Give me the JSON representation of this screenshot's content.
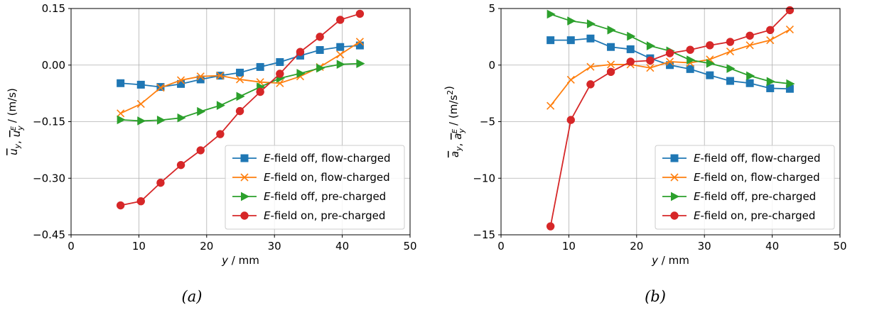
{
  "chart_data": [
    {
      "type": "line",
      "caption": "(a)",
      "xlabel": {
        "var": "y",
        "unit": " / mm"
      },
      "ylabel": {
        "parts": [
          [
            "u",
            "over",
            "y"
          ],
          [
            ", ",
            "",
            ""
          ],
          [
            "u",
            "over",
            "y",
            "E"
          ],
          [
            " / (m/s)",
            "",
            ""
          ]
        ]
      },
      "xlim": [
        0,
        50
      ],
      "ylim": [
        -0.45,
        0.15
      ],
      "xticks": [
        "0",
        "10",
        "20",
        "30",
        "40",
        "50"
      ],
      "yticks": [
        "−0.45",
        "−0.30",
        "−0.15",
        "0.00",
        "0.15"
      ],
      "grid": true,
      "legend_position": "lower-right",
      "series": [
        {
          "name": "field off, flow-charged",
          "prefix": "E",
          "color": "#1f77b4",
          "marker": "square",
          "x": [
            7.3,
            10.3,
            13.2,
            16.2,
            19.1,
            22.0,
            24.9,
            27.9,
            30.8,
            33.8,
            36.7,
            39.7,
            42.6
          ],
          "y": [
            -0.048,
            -0.052,
            -0.058,
            -0.05,
            -0.038,
            -0.028,
            -0.02,
            -0.005,
            0.008,
            0.025,
            0.04,
            0.048,
            0.052
          ]
        },
        {
          "name": "field on, flow-charged",
          "prefix": "E",
          "color": "#ff7f0e",
          "marker": "x",
          "x": [
            7.3,
            10.3,
            13.2,
            16.2,
            19.1,
            22.0,
            24.9,
            27.9,
            30.8,
            33.8,
            36.7,
            39.7,
            42.6
          ],
          "y": [
            -0.128,
            -0.103,
            -0.06,
            -0.04,
            -0.03,
            -0.028,
            -0.038,
            -0.045,
            -0.048,
            -0.03,
            -0.005,
            0.028,
            0.062
          ]
        },
        {
          "name": "field off, pre-charged",
          "prefix": "E",
          "color": "#2ca02c",
          "marker": "triangle-right",
          "x": [
            7.3,
            10.3,
            13.2,
            16.2,
            19.1,
            22.0,
            24.9,
            27.9,
            30.8,
            33.8,
            36.7,
            39.7,
            42.6
          ],
          "y": [
            -0.145,
            -0.148,
            -0.146,
            -0.14,
            -0.123,
            -0.107,
            -0.083,
            -0.058,
            -0.035,
            -0.022,
            -0.008,
            0.002,
            0.004
          ]
        },
        {
          "name": "field on, pre-charged",
          "prefix": "E",
          "color": "#d62728",
          "marker": "circle",
          "x": [
            7.3,
            10.3,
            13.2,
            16.2,
            19.1,
            22.0,
            24.9,
            27.9,
            30.8,
            33.8,
            36.7,
            39.7,
            42.6
          ],
          "y": [
            -0.372,
            -0.361,
            -0.312,
            -0.265,
            -0.226,
            -0.183,
            -0.122,
            -0.071,
            -0.023,
            0.035,
            0.075,
            0.12,
            0.136
          ]
        }
      ]
    },
    {
      "type": "line",
      "caption": "(b)",
      "xlabel": {
        "var": "y",
        "unit": " / mm"
      },
      "ylabel": {
        "parts": [
          [
            "a",
            "over",
            "y"
          ],
          [
            ", ",
            "",
            ""
          ],
          [
            "a",
            "over",
            "y",
            "E"
          ],
          [
            " / (m/s",
            "",
            ""
          ],
          [
            "2",
            "sup",
            ""
          ],
          [
            ")",
            "",
            ""
          ]
        ]
      },
      "xlim": [
        0,
        50
      ],
      "ylim": [
        -15,
        5
      ],
      "xticks": [
        "0",
        "10",
        "20",
        "30",
        "40",
        "50"
      ],
      "yticks": [
        "−15",
        "−10",
        "−5",
        "0",
        "5"
      ],
      "grid": true,
      "legend_position": "lower-right",
      "series": [
        {
          "name": "field off, flow-charged",
          "prefix": "E",
          "color": "#1f77b4",
          "marker": "square",
          "x": [
            7.3,
            10.3,
            13.2,
            16.2,
            19.1,
            22.0,
            24.9,
            27.9,
            30.8,
            33.8,
            36.7,
            39.7,
            42.6
          ],
          "y": [
            2.2,
            2.2,
            2.35,
            1.6,
            1.4,
            0.6,
            0.0,
            -0.35,
            -0.9,
            -1.4,
            -1.6,
            -2.05,
            -2.1
          ]
        },
        {
          "name": "field on, flow-charged",
          "prefix": "E",
          "color": "#ff7f0e",
          "marker": "x",
          "x": [
            7.3,
            10.3,
            13.2,
            16.2,
            19.1,
            22.0,
            24.9,
            27.9,
            30.8,
            33.8,
            36.7,
            39.7,
            42.6
          ],
          "y": [
            -3.6,
            -1.3,
            -0.15,
            0.05,
            0.05,
            -0.25,
            0.3,
            0.2,
            0.5,
            1.2,
            1.75,
            2.2,
            3.15
          ]
        },
        {
          "name": "field off, pre-charged",
          "prefix": "E",
          "color": "#2ca02c",
          "marker": "triangle-right",
          "x": [
            7.3,
            10.3,
            13.2,
            16.2,
            19.1,
            22.0,
            24.9,
            27.9,
            30.8,
            33.8,
            36.7,
            39.7,
            42.6
          ],
          "y": [
            4.5,
            3.9,
            3.65,
            3.1,
            2.55,
            1.7,
            1.25,
            0.45,
            0.15,
            -0.3,
            -0.95,
            -1.45,
            -1.65
          ]
        },
        {
          "name": "field on, pre-charged",
          "prefix": "E",
          "color": "#d62728",
          "marker": "circle",
          "x": [
            7.3,
            10.3,
            13.2,
            16.2,
            19.1,
            22.0,
            24.9,
            27.9,
            30.8,
            33.8,
            36.7,
            39.7,
            42.6
          ],
          "y": [
            -14.25,
            -4.85,
            -1.7,
            -0.6,
            0.3,
            0.4,
            1.05,
            1.35,
            1.75,
            2.05,
            2.6,
            3.1,
            4.85
          ]
        }
      ]
    }
  ]
}
